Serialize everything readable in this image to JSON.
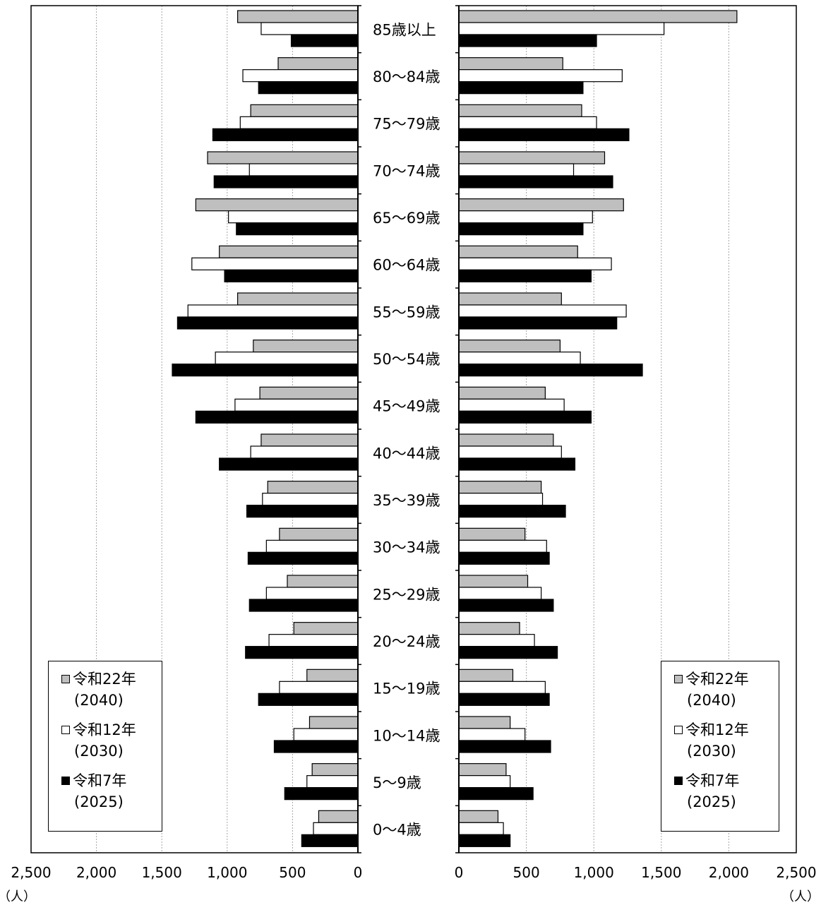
{
  "chart_data": {
    "type": "bar",
    "orientation": "horizontal",
    "layout": "population-pyramid",
    "categories": [
      "85歳以上",
      "80～84歳",
      "75～79歳",
      "70～74歳",
      "65～69歳",
      "60～64歳",
      "55～59歳",
      "50～54歳",
      "45～49歳",
      "40～44歳",
      "35～39歳",
      "30～34歳",
      "25～29歳",
      "20～24歳",
      "15～19歳",
      "10～14歳",
      "5～9歳",
      "0～4歳"
    ],
    "unit": "（人）",
    "xlim": [
      0,
      2500
    ],
    "xticks": [
      "0",
      "500",
      "1,000",
      "1,500",
      "2,000",
      "2,500"
    ],
    "grid": true,
    "legend_position": "bottom",
    "colors": {
      "2040": "#bfbfbf",
      "2030": "#ffffff",
      "2025": "#000000"
    },
    "panels": [
      {
        "side": "left",
        "series": [
          {
            "key": "2040",
            "values": [
              920,
              610,
              820,
              1150,
              1240,
              1060,
              920,
              800,
              750,
              740,
              690,
              600,
              540,
              490,
              390,
              370,
              350,
              300
            ]
          },
          {
            "key": "2030",
            "values": [
              740,
              880,
              900,
              830,
              990,
              1270,
              1300,
              1090,
              940,
              820,
              730,
              700,
              700,
              680,
              600,
              490,
              390,
              340
            ]
          },
          {
            "key": "2025",
            "values": [
              510,
              760,
              1110,
              1100,
              930,
              1020,
              1380,
              1420,
              1240,
              1060,
              850,
              840,
              830,
              860,
              760,
              640,
              560,
              430
            ]
          }
        ]
      },
      {
        "side": "right",
        "series": [
          {
            "key": "2040",
            "values": [
              2060,
              770,
              910,
              1080,
              1220,
              880,
              760,
              750,
              640,
              700,
              610,
              490,
              510,
              450,
              400,
              380,
              350,
              290
            ]
          },
          {
            "key": "2030",
            "values": [
              1520,
              1210,
              1020,
              850,
              990,
              1130,
              1240,
              900,
              780,
              760,
              620,
              650,
              610,
              560,
              640,
              490,
              380,
              330
            ]
          },
          {
            "key": "2025",
            "values": [
              1020,
              920,
              1260,
              1140,
              920,
              980,
              1170,
              1360,
              980,
              860,
              790,
              670,
              700,
              730,
              670,
              680,
              550,
              380
            ]
          }
        ]
      }
    ],
    "legend": [
      {
        "key": "2040",
        "label": "令和22年",
        "sub": "(2040)"
      },
      {
        "key": "2030",
        "label": "令和12年",
        "sub": "(2030)"
      },
      {
        "key": "2025",
        "label": "令和7年",
        "sub": "(2025)"
      }
    ]
  }
}
